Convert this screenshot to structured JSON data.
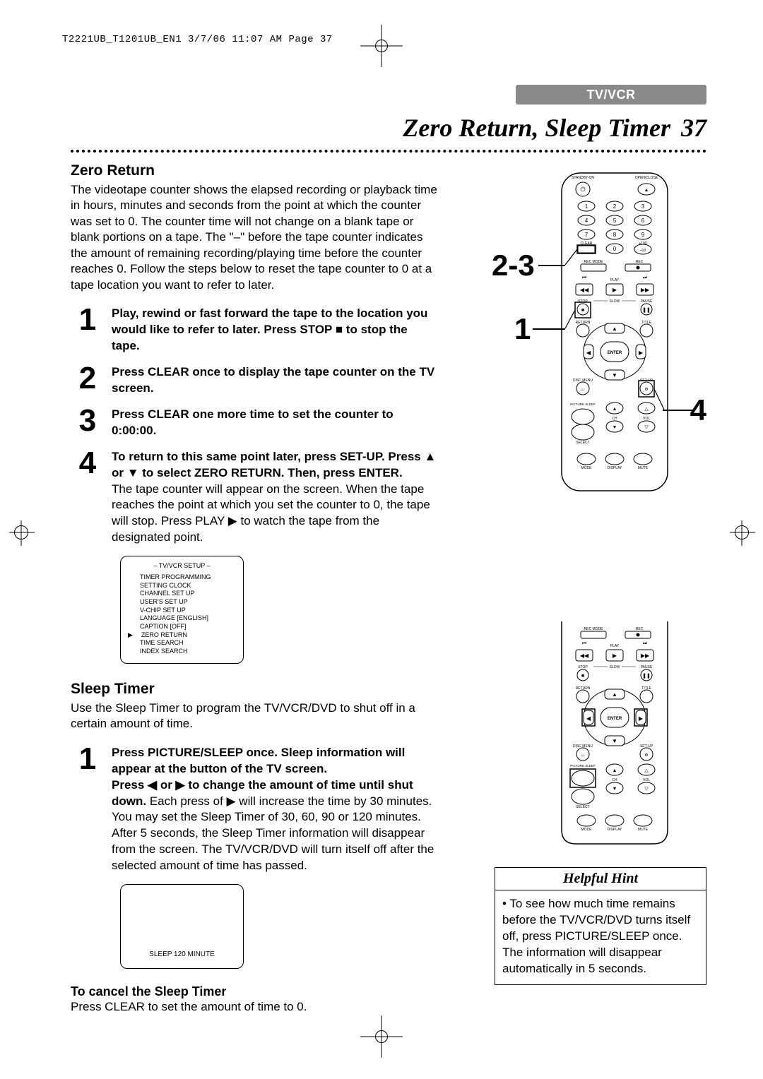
{
  "print": {
    "ref_line": "T2221UB_T1201UB_EN1  3/7/06  11:07 AM  Page 37"
  },
  "header": {
    "section_tab": "TV/VCR",
    "page_title": "Zero Return, Sleep Timer",
    "page_number": "37"
  },
  "zero_return": {
    "heading": "Zero Return",
    "intro": "The videotape counter shows the elapsed recording or playback time in hours, minutes and seconds from the point at which the counter was set to 0. The counter time will not change on a blank tape or blank portions on a tape. The \"–\" before the tape counter indicates the amount of remaining recording/playing time before the counter reaches 0. Follow the steps below to reset the tape counter to 0 at a tape location you want to refer to later.",
    "steps": [
      {
        "n": "1",
        "bold": "Play, rewind or fast forward the tape to the location you would like to refer to later. Press STOP ■ to stop the tape."
      },
      {
        "n": "2",
        "bold": "Press CLEAR once to display the tape counter on the TV screen."
      },
      {
        "n": "3",
        "bold": "Press CLEAR one more time to set the counter to 0:00:00."
      },
      {
        "n": "4",
        "bold": "To return to this same point later, press SET-UP. Press ▲ or ▼ to select ZERO RETURN. Then, press ENTER.",
        "plain": "The tape counter will appear on the screen. When the tape reaches the point at which you set the counter to 0, the tape will stop. Press PLAY ▶ to watch the tape from the designated point."
      }
    ],
    "osd": {
      "title": "– TV/VCR SETUP –",
      "items": [
        "TIMER PROGRAMMING",
        "SETTING CLOCK",
        "CHANNEL SET UP",
        "USER'S SET UP",
        "V-CHIP SET UP",
        "LANGUAGE  [ENGLISH]",
        "CAPTION  [OFF]",
        "ZERO RETURN",
        "TIME SEARCH",
        "INDEX SEARCH"
      ],
      "selected_index": 7
    }
  },
  "sleep_timer": {
    "heading": "Sleep Timer",
    "intro": "Use the Sleep Timer to program the TV/VCR/DVD to shut off in a certain amount of time.",
    "step1_bold_a": "Press PICTURE/SLEEP once. Sleep information will appear at the button of the TV screen.",
    "step1_bold_b": "Press ◀ or ▶ to change the amount of time until shut down.",
    "step1_plain": " Each press of ▶ will increase the time by 30 minutes. You may set the Sleep Timer of 30, 60, 90 or 120 minutes.\nAfter 5 seconds, the Sleep Timer information will disappear from the screen. The TV/VCR/DVD will turn itself off after the selected amount of time has passed.",
    "osd_text": "SLEEP 120 MINUTE",
    "cancel_heading": "To cancel the Sleep Timer",
    "cancel_body": "Press CLEAR to set the amount of time to 0."
  },
  "hint": {
    "title": "Helpful Hint",
    "body": "To see how much time remains before the TV/VCR/DVD turns itself off, press PICTURE/SLEEP once. The information will disappear automatically in 5 seconds."
  },
  "callouts": {
    "a": "2-3",
    "b": "1",
    "c": "4"
  },
  "remote": {
    "labels": {
      "standby": "STANDBY-ON",
      "open": "OPEN/CLOSE",
      "clear": "CLEAR",
      "plus100": "+100",
      "plus10": "+10",
      "recmode": "REC MODE",
      "rec": "REC",
      "play": "PLAY",
      "stop": "STOP",
      "slow": "SLOW",
      "pause": "PAUSE",
      "return": "RETURN",
      "title": "TITLE",
      "enter": "ENTER",
      "disc": "DISC MENU",
      "setup": "SET-UP",
      "picture": "PICTURE SLEEP",
      "ch": "CH",
      "vol": "VOL",
      "select": "SELECT",
      "mode": "MODE",
      "display": "DISPLAY",
      "mute": "MUTE"
    }
  }
}
